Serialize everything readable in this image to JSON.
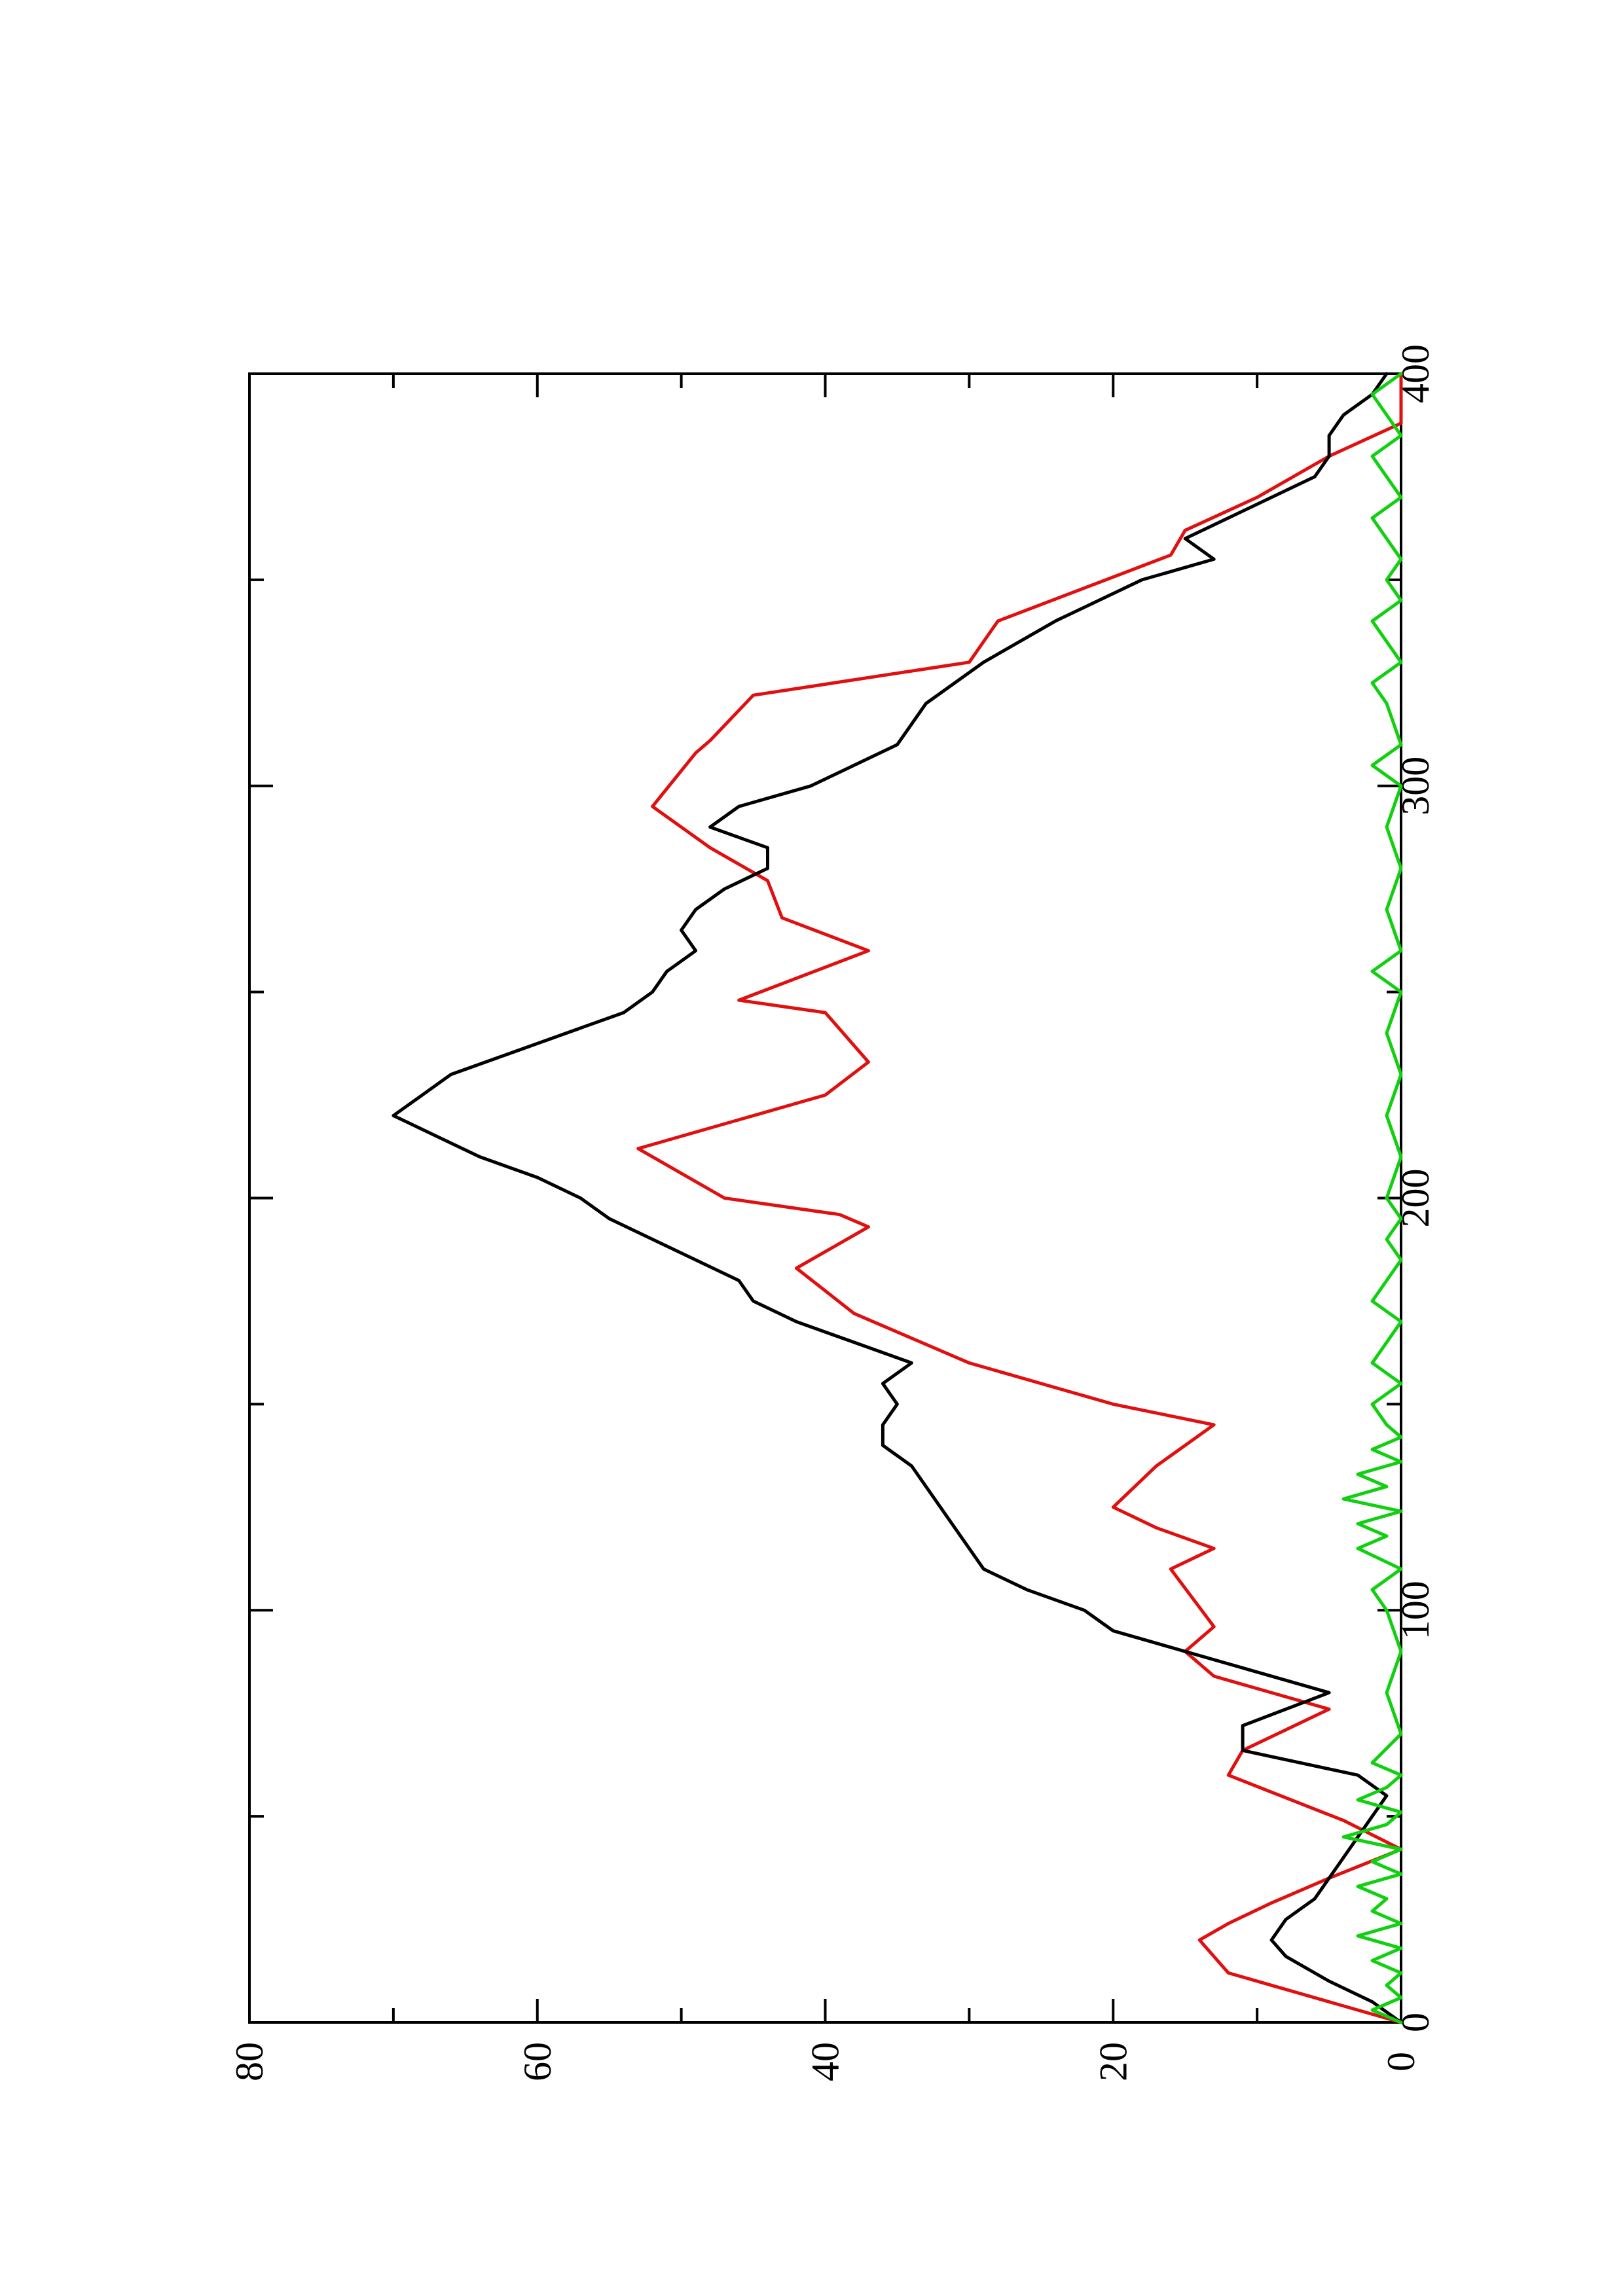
{
  "chart_data": {
    "type": "line",
    "title": "",
    "xlabel": "",
    "ylabel": "",
    "xlim": [
      0,
      400
    ],
    "ylim": [
      0,
      80
    ],
    "x_ticks": [
      0,
      100,
      200,
      300,
      400
    ],
    "y_ticks": [
      0,
      20,
      40,
      60,
      80
    ],
    "grid": false,
    "legend": "none",
    "orientation": "rotated-90-clockwise",
    "series": [
      {
        "color": "#e01010",
        "step": true,
        "points": [
          [
            0,
            0
          ],
          [
            3,
            3
          ],
          [
            9,
            9
          ],
          [
            12,
            12
          ],
          [
            20,
            14
          ],
          [
            24,
            12
          ],
          [
            29,
            9
          ],
          [
            35,
            5
          ],
          [
            42,
            0
          ],
          [
            49,
            4
          ],
          [
            60,
            12
          ],
          [
            66,
            11
          ],
          [
            76,
            5
          ],
          [
            84,
            13
          ],
          [
            90,
            15
          ],
          [
            96,
            13
          ],
          [
            110,
            16
          ],
          [
            115,
            13
          ],
          [
            120,
            17
          ],
          [
            125,
            20
          ],
          [
            135,
            17
          ],
          [
            145,
            13
          ],
          [
            150,
            20
          ],
          [
            155,
            25
          ],
          [
            160,
            30
          ],
          [
            172,
            38
          ],
          [
            183,
            42
          ],
          [
            193,
            37
          ],
          [
            196,
            39
          ],
          [
            200,
            47
          ],
          [
            212,
            53
          ],
          [
            225,
            40
          ],
          [
            233,
            37
          ],
          [
            245,
            40
          ],
          [
            248,
            46
          ],
          [
            260,
            37
          ],
          [
            268,
            43
          ],
          [
            277,
            44
          ],
          [
            285,
            48
          ],
          [
            295,
            52
          ],
          [
            308,
            49
          ],
          [
            311,
            48
          ],
          [
            322,
            45
          ],
          [
            330,
            30
          ],
          [
            340,
            28
          ],
          [
            356,
            16
          ],
          [
            362,
            15
          ],
          [
            370,
            10
          ],
          [
            380,
            5
          ],
          [
            388,
            0
          ],
          [
            400,
            0
          ]
        ]
      },
      {
        "color": "#000000",
        "step": false,
        "points": [
          [
            0,
            0
          ],
          [
            5,
            2
          ],
          [
            10,
            5
          ],
          [
            16,
            8
          ],
          [
            20,
            9
          ],
          [
            25,
            8
          ],
          [
            30,
            6
          ],
          [
            35,
            5
          ],
          [
            40,
            4
          ],
          [
            45,
            3
          ],
          [
            50,
            2
          ],
          [
            55,
            1
          ],
          [
            60,
            3
          ],
          [
            66,
            11
          ],
          [
            72,
            11
          ],
          [
            80,
            5
          ],
          [
            87,
            12
          ],
          [
            95,
            20
          ],
          [
            100,
            22
          ],
          [
            105,
            26
          ],
          [
            110,
            29
          ],
          [
            115,
            30
          ],
          [
            120,
            31
          ],
          [
            125,
            32
          ],
          [
            130,
            33
          ],
          [
            135,
            34
          ],
          [
            140,
            36
          ],
          [
            145,
            36
          ],
          [
            150,
            35
          ],
          [
            155,
            36
          ],
          [
            160,
            34
          ],
          [
            165,
            38
          ],
          [
            170,
            42
          ],
          [
            175,
            45
          ],
          [
            180,
            46
          ],
          [
            185,
            49
          ],
          [
            190,
            52
          ],
          [
            195,
            55
          ],
          [
            200,
            57
          ],
          [
            205,
            60
          ],
          [
            210,
            64
          ],
          [
            215,
            67
          ],
          [
            220,
            70
          ],
          [
            225,
            68
          ],
          [
            230,
            66
          ],
          [
            235,
            62
          ],
          [
            240,
            58
          ],
          [
            245,
            54
          ],
          [
            250,
            52
          ],
          [
            255,
            51
          ],
          [
            260,
            49
          ],
          [
            265,
            50
          ],
          [
            270,
            49
          ],
          [
            275,
            47
          ],
          [
            280,
            44
          ],
          [
            285,
            44
          ],
          [
            290,
            48
          ],
          [
            295,
            46
          ],
          [
            300,
            41
          ],
          [
            305,
            38
          ],
          [
            310,
            35
          ],
          [
            315,
            34
          ],
          [
            320,
            33
          ],
          [
            325,
            31
          ],
          [
            330,
            29
          ],
          [
            340,
            24
          ],
          [
            350,
            18
          ],
          [
            355,
            13
          ],
          [
            360,
            15
          ],
          [
            365,
            12
          ],
          [
            370,
            9
          ],
          [
            375,
            6
          ],
          [
            380,
            5
          ],
          [
            385,
            5
          ],
          [
            390,
            4
          ],
          [
            395,
            2
          ],
          [
            400,
            1
          ]
        ]
      },
      {
        "color": "#10d010",
        "step": false,
        "points": [
          [
            0,
            0
          ],
          [
            3,
            2
          ],
          [
            6,
            0
          ],
          [
            9,
            1
          ],
          [
            12,
            0
          ],
          [
            15,
            2
          ],
          [
            18,
            0
          ],
          [
            21,
            3
          ],
          [
            24,
            0
          ],
          [
            27,
            2
          ],
          [
            30,
            1
          ],
          [
            33,
            3
          ],
          [
            36,
            0
          ],
          [
            39,
            2
          ],
          [
            42,
            0
          ],
          [
            45,
            4
          ],
          [
            48,
            1
          ],
          [
            51,
            0
          ],
          [
            54,
            3
          ],
          [
            57,
            1
          ],
          [
            60,
            0
          ],
          [
            63,
            2
          ],
          [
            70,
            0
          ],
          [
            80,
            1
          ],
          [
            90,
            0
          ],
          [
            100,
            1
          ],
          [
            105,
            2
          ],
          [
            110,
            0
          ],
          [
            115,
            3
          ],
          [
            118,
            1
          ],
          [
            121,
            3
          ],
          [
            124,
            0
          ],
          [
            127,
            4
          ],
          [
            130,
            1
          ],
          [
            133,
            3
          ],
          [
            136,
            0
          ],
          [
            139,
            2
          ],
          [
            142,
            0
          ],
          [
            145,
            1
          ],
          [
            150,
            2
          ],
          [
            155,
            0
          ],
          [
            160,
            2
          ],
          [
            165,
            1
          ],
          [
            170,
            0
          ],
          [
            175,
            2
          ],
          [
            180,
            1
          ],
          [
            185,
            0
          ],
          [
            190,
            1
          ],
          [
            195,
            0
          ],
          [
            200,
            1
          ],
          [
            210,
            0
          ],
          [
            220,
            1
          ],
          [
            230,
            0
          ],
          [
            240,
            1
          ],
          [
            250,
            0
          ],
          [
            255,
            2
          ],
          [
            260,
            0
          ],
          [
            270,
            1
          ],
          [
            280,
            0
          ],
          [
            290,
            1
          ],
          [
            300,
            0
          ],
          [
            305,
            2
          ],
          [
            310,
            0
          ],
          [
            320,
            1
          ],
          [
            325,
            2
          ],
          [
            330,
            0
          ],
          [
            335,
            1
          ],
          [
            340,
            2
          ],
          [
            345,
            0
          ],
          [
            350,
            1
          ],
          [
            355,
            0
          ],
          [
            360,
            1
          ],
          [
            365,
            2
          ],
          [
            370,
            0
          ],
          [
            375,
            1
          ],
          [
            380,
            2
          ],
          [
            385,
            0
          ],
          [
            390,
            1
          ],
          [
            395,
            2
          ],
          [
            400,
            0
          ]
        ]
      }
    ]
  }
}
